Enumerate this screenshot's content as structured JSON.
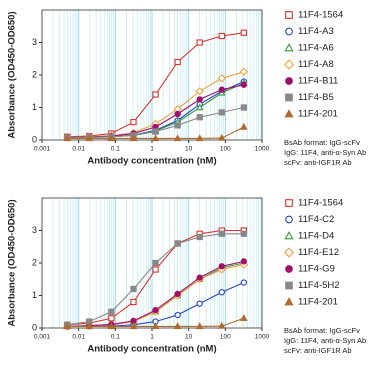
{
  "chart_data": [
    {
      "type": "line",
      "x_label": "Antibody concentration (nM)",
      "y_label": "Absorbance (OD450-OD650)",
      "x_log": true,
      "grid": true,
      "legend": "right",
      "x": [
        0.0049,
        0.0195,
        0.078,
        0.3125,
        1.25,
        5,
        20,
        80,
        320
      ],
      "xlim": [
        0.001,
        1000
      ],
      "xticks": [
        0.001,
        0.01,
        0.1,
        1,
        10,
        100,
        1000
      ],
      "ylim": [
        0,
        4
      ],
      "yticks": [
        0,
        1,
        2,
        3
      ],
      "series": [
        {
          "name": "11F4-1564",
          "color": "#d9352b",
          "marker": "square-open",
          "values": [
            0.1,
            0.12,
            0.2,
            0.55,
            1.4,
            2.4,
            3.0,
            3.2,
            3.3
          ]
        },
        {
          "name": "11F4-A3",
          "color": "#2244cc",
          "marker": "circle-open",
          "values": [
            0.08,
            0.09,
            0.1,
            0.15,
            0.3,
            0.6,
            1.1,
            1.5,
            1.8
          ]
        },
        {
          "name": "11F4-A6",
          "color": "#3a9a3a",
          "marker": "triangle-open",
          "values": [
            0.08,
            0.09,
            0.1,
            0.14,
            0.28,
            0.55,
            1.0,
            1.45,
            1.75
          ]
        },
        {
          "name": "11F4-A8",
          "color": "#f0a040",
          "marker": "diamond-open",
          "values": [
            0.08,
            0.1,
            0.13,
            0.22,
            0.5,
            0.95,
            1.5,
            1.9,
            2.1
          ]
        },
        {
          "name": "11F4-B11",
          "color": "#a0106a",
          "marker": "circle",
          "values": [
            0.08,
            0.09,
            0.12,
            0.2,
            0.4,
            0.8,
            1.25,
            1.55,
            1.7
          ]
        },
        {
          "name": "11F4-B5",
          "color": "#888888",
          "marker": "square",
          "values": [
            0.07,
            0.08,
            0.1,
            0.14,
            0.26,
            0.45,
            0.7,
            0.85,
            1.0
          ]
        },
        {
          "name": "11F4-201",
          "color": "#b06a30",
          "marker": "triangle",
          "values": [
            0.05,
            0.05,
            0.05,
            0.05,
            0.05,
            0.05,
            0.05,
            0.06,
            0.4
          ]
        }
      ],
      "notes": [
        "BsAb format: IgG-scFv",
        "IgG: 11F4, anti-α-Syn Ab",
        "scFv: anti-IGF1R Ab"
      ]
    },
    {
      "type": "line",
      "x_label": "Antibody concentration (nM)",
      "y_label": "Absorbance (OD450-OD650)",
      "x_log": true,
      "grid": true,
      "legend": "right",
      "x": [
        0.0049,
        0.0195,
        0.078,
        0.3125,
        1.25,
        5,
        20,
        80,
        320
      ],
      "xlim": [
        0.001,
        1000
      ],
      "xticks": [
        0.001,
        0.01,
        0.1,
        1,
        10,
        100,
        1000
      ],
      "ylim": [
        0,
        4
      ],
      "yticks": [
        0,
        1,
        2,
        3
      ],
      "series": [
        {
          "name": "11F4-1564",
          "color": "#d9352b",
          "marker": "square-open",
          "values": [
            0.1,
            0.15,
            0.3,
            0.8,
            1.8,
            2.6,
            2.9,
            3.0,
            3.0
          ]
        },
        {
          "name": "11F4-C2",
          "color": "#2244cc",
          "marker": "circle-open",
          "values": [
            0.05,
            0.05,
            0.06,
            0.1,
            0.2,
            0.4,
            0.75,
            1.1,
            1.4
          ]
        },
        {
          "name": "11F4-D4",
          "color": "#3a9a3a",
          "marker": "triangle-open",
          "values": [
            0.05,
            0.07,
            0.1,
            0.2,
            0.5,
            1.0,
            1.5,
            1.85,
            2.0
          ]
        },
        {
          "name": "11F4-E12",
          "color": "#f0a040",
          "marker": "diamond-open",
          "values": [
            0.05,
            0.07,
            0.1,
            0.2,
            0.5,
            1.0,
            1.5,
            1.8,
            1.95
          ]
        },
        {
          "name": "11F4-G9",
          "color": "#a0106a",
          "marker": "circle",
          "values": [
            0.05,
            0.07,
            0.11,
            0.22,
            0.55,
            1.05,
            1.55,
            1.9,
            2.05
          ]
        },
        {
          "name": "11F4-5H2",
          "color": "#888888",
          "marker": "square",
          "values": [
            0.1,
            0.2,
            0.5,
            1.2,
            2.0,
            2.6,
            2.8,
            2.9,
            2.9
          ]
        },
        {
          "name": "11F4-201",
          "color": "#b06a30",
          "marker": "triangle",
          "values": [
            0.05,
            0.05,
            0.05,
            0.05,
            0.05,
            0.05,
            0.05,
            0.06,
            0.3
          ]
        }
      ],
      "notes": [
        "BsAb format: IgG-scFv",
        "IgG: 11F4, anti-α-Syn Ab",
        "scFv: anti-IGF1R Ab"
      ]
    }
  ]
}
